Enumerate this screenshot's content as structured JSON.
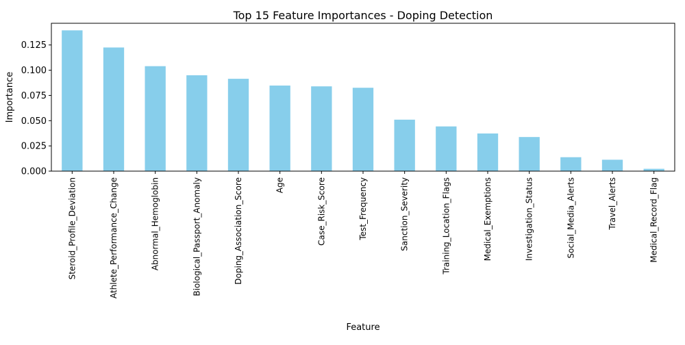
{
  "chart_data": {
    "type": "bar",
    "title": "Top 15 Feature Importances - Doping Detection",
    "xlabel": "Feature",
    "ylabel": "Importance",
    "ylim": [
      0,
      0.1465
    ],
    "yticks": [
      "0.000",
      "0.025",
      "0.050",
      "0.075",
      "0.100",
      "0.125"
    ],
    "ytick_values": [
      0,
      0.025,
      0.05,
      0.075,
      0.1,
      0.125
    ],
    "grid": false,
    "legend": "none",
    "bar_color": "#87CEEB",
    "categories": [
      "Steroid_Profile_Deviation",
      "Athlete_Performance_Change",
      "Abnormal_Hemoglobin",
      "Biological_Passport_Anomaly",
      "Doping_Association_Score",
      "Age",
      "Case_Risk_Score",
      "Test_Frequency",
      "Sanction_Severity",
      "Training_Location_Flags",
      "Medical_Exemptions",
      "Investigation_Status",
      "Social_Media_Alerts",
      "Travel_Alerts",
      "Medical_Record_Flag"
    ],
    "values": [
      0.1395,
      0.1225,
      0.104,
      0.095,
      0.0915,
      0.0848,
      0.084,
      0.0826,
      0.051,
      0.0443,
      0.0373,
      0.0338,
      0.0138,
      0.0113,
      0.0023
    ]
  }
}
